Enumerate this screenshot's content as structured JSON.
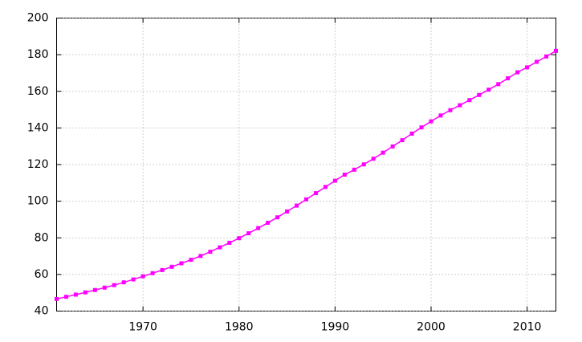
{
  "chart_data": {
    "type": "line",
    "x": [
      1961,
      1962,
      1963,
      1964,
      1965,
      1966,
      1967,
      1968,
      1969,
      1970,
      1971,
      1972,
      1973,
      1974,
      1975,
      1976,
      1977,
      1978,
      1979,
      1980,
      1981,
      1982,
      1983,
      1984,
      1985,
      1986,
      1987,
      1988,
      1989,
      1990,
      1991,
      1992,
      1993,
      1994,
      1995,
      1996,
      1997,
      1998,
      1999,
      2000,
      2001,
      2002,
      2003,
      2004,
      2005,
      2006,
      2007,
      2008,
      2009,
      2010,
      2011,
      2012,
      2013
    ],
    "series": [
      {
        "color": "#ff00ff",
        "values": [
          46.6,
          47.8,
          49.0,
          50.2,
          51.5,
          52.8,
          54.2,
          55.7,
          57.3,
          59.0,
          60.7,
          62.4,
          64.2,
          66.1,
          68.0,
          70.1,
          72.4,
          74.8,
          77.3,
          79.8,
          82.5,
          85.3,
          88.2,
          91.2,
          94.4,
          97.6,
          101.0,
          104.4,
          107.8,
          111.2,
          114.5,
          117.2,
          120.1,
          123.2,
          126.5,
          129.9,
          133.3,
          136.9,
          140.3,
          143.6,
          146.8,
          149.7,
          152.4,
          155.2,
          158.0,
          160.9,
          163.9,
          167.1,
          170.4,
          173.1,
          176.1,
          179.0,
          182.1
        ]
      }
    ],
    "xlim": [
      1961,
      2013
    ],
    "xticks": [
      1970,
      1980,
      1990,
      2000,
      2010
    ],
    "ylim": [
      40,
      200
    ],
    "yticks": [
      40,
      60,
      80,
      100,
      120,
      140,
      160,
      180,
      200
    ],
    "grid": true
  }
}
